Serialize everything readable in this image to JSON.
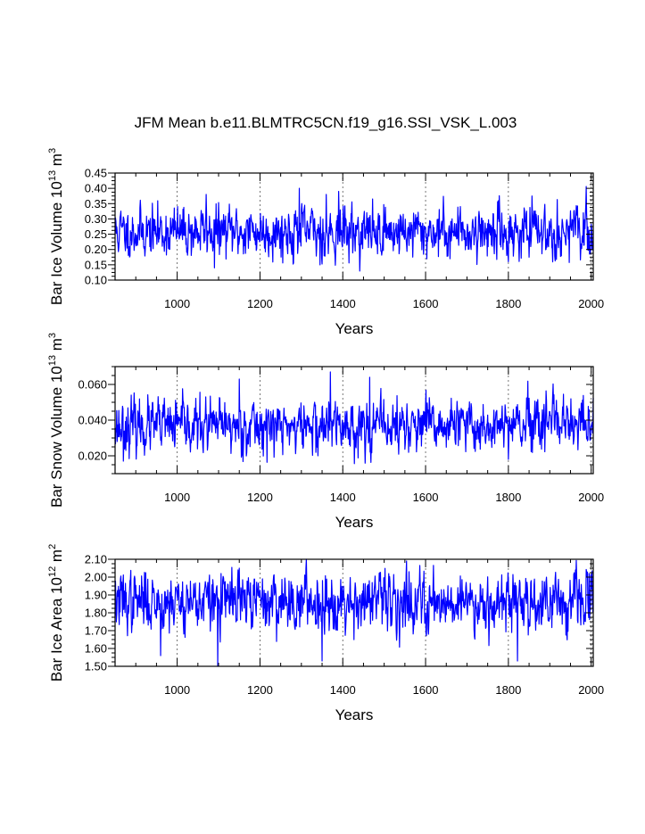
{
  "title": "JFM Mean b.e11.BLMTRC5CN.f19_g16.SSI_VSK_L.003",
  "colors": {
    "line": "#0000ff",
    "axis": "#000000",
    "grid": "#555555"
  },
  "chart_data": [
    {
      "type": "line",
      "id": "ice-volume",
      "xlabel": "Years",
      "ylabel": {
        "prefix": "Bar Ice Volume 10",
        "exp": "13",
        "unit": " m",
        "unit_exp": "3"
      },
      "xlim": [
        850,
        2005
      ],
      "ylim": [
        0.1,
        0.45
      ],
      "xticks": [
        1000,
        1200,
        1400,
        1600,
        1800,
        2000
      ],
      "xtick_labels": [
        "1000",
        "1200",
        "1400",
        "1600",
        "1800",
        "2000"
      ],
      "yticks": [
        0.1,
        0.15,
        0.2,
        0.25,
        0.3,
        0.35,
        0.4,
        0.45
      ],
      "ytick_labels": [
        "0.10",
        "0.15",
        "0.20",
        "0.25",
        "0.30",
        "0.35",
        "0.40",
        "0.45"
      ],
      "grid": "vertical-dotted",
      "series": [
        {
          "name": "Bar Ice Volume",
          "x_start": 850,
          "x_end": 2005,
          "mean": 0.258,
          "sd": 0.038,
          "seed": 11,
          "extremes": [
            [
              1090,
              0.14
            ],
            [
              1295,
              0.4
            ],
            [
              1345,
              0.15
            ],
            [
              1360,
              0.38
            ],
            [
              1390,
              0.39
            ],
            [
              1800,
              0.16
            ],
            [
              1070,
              0.38
            ]
          ]
        }
      ]
    },
    {
      "type": "line",
      "id": "snow-volume",
      "xlabel": "Years",
      "ylabel": {
        "prefix": "Bar Snow Volume 10",
        "exp": "13",
        "unit": " m",
        "unit_exp": "3"
      },
      "xlim": [
        850,
        2005
      ],
      "ylim": [
        0.01,
        0.07
      ],
      "xticks": [
        1000,
        1200,
        1400,
        1600,
        1800,
        2000
      ],
      "xtick_labels": [
        "1000",
        "1200",
        "1400",
        "1600",
        "1800",
        "2000"
      ],
      "yticks": [
        0.02,
        0.04,
        0.06
      ],
      "ytick_labels": [
        "0.020",
        "0.040",
        "0.060"
      ],
      "grid": "vertical-dotted",
      "series": [
        {
          "name": "Bar Snow Volume",
          "x_start": 850,
          "x_end": 2005,
          "mean": 0.0365,
          "sd": 0.0068,
          "seed": 23,
          "extremes": [
            [
              1370,
              0.067
            ],
            [
              1465,
              0.064
            ],
            [
              1150,
              0.063
            ],
            [
              870,
              0.017
            ],
            [
              1800,
              0.018
            ],
            [
              1340,
              0.02
            ]
          ]
        }
      ]
    },
    {
      "type": "line",
      "id": "ice-area",
      "xlabel": "Years",
      "ylabel": {
        "prefix": "Bar Ice Area 10",
        "exp": "12",
        "unit": " m",
        "unit_exp": "2"
      },
      "xlim": [
        850,
        2005
      ],
      "ylim": [
        1.5,
        2.1
      ],
      "xticks": [
        1000,
        1200,
        1400,
        1600,
        1800,
        2000
      ],
      "xtick_labels": [
        "1000",
        "1200",
        "1400",
        "1600",
        "1800",
        "2000"
      ],
      "yticks": [
        1.5,
        1.6,
        1.7,
        1.8,
        1.9,
        2.0,
        2.1
      ],
      "ytick_labels": [
        "1.50",
        "1.60",
        "1.70",
        "1.80",
        "1.90",
        "2.00",
        "2.10"
      ],
      "grid": "vertical-dotted",
      "series": [
        {
          "name": "Bar Ice Area",
          "x_start": 850,
          "x_end": 2005,
          "mean": 1.865,
          "sd": 0.075,
          "seed": 37,
          "extremes": [
            [
              1098,
              1.5
            ],
            [
              1350,
              1.53
            ],
            [
              960,
              1.56
            ],
            [
              1822,
              1.53
            ],
            [
              1150,
              2.05
            ],
            [
              1995,
              2.02
            ],
            [
              1560,
              2.03
            ]
          ]
        }
      ]
    }
  ]
}
